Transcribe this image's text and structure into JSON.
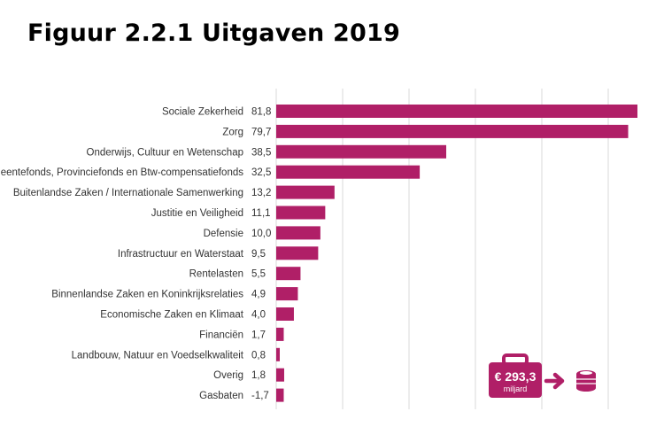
{
  "title": "Figuur 2.2.1 Uitgaven 2019",
  "colors": {
    "bar": "#b01f67",
    "grid": "#d9d9d9",
    "text": "#333333"
  },
  "total": {
    "amount": "€ 293,3",
    "unit": "miljard",
    "icons": [
      "briefcase-icon",
      "arrow-right-icon",
      "coin-stack-icon"
    ]
  },
  "chart_data": {
    "type": "bar",
    "orientation": "horizontal",
    "title": "Figuur 2.2.1 Uitgaven 2019",
    "xlim": [
      0,
      81.8
    ],
    "categories": [
      "Sociale Zekerheid",
      "Zorg",
      "Onderwijs, Cultuur en Wetenschap",
      "Gemeentefonds, Provinciefonds en Btw-compensatiefonds",
      "Buitenlandse Zaken / Internationale Samenwerking",
      "Justitie en Veiligheid",
      "Defensie",
      "Infrastructuur en Waterstaat",
      "Rentelasten",
      "Binnenlandse Zaken en Koninkrijksrelaties",
      "Economische Zaken en Klimaat",
      "Financiën",
      "Landbouw, Natuur en Voedselkwaliteit",
      "Overig",
      "Gasbaten"
    ],
    "values": [
      81.8,
      79.7,
      38.5,
      32.5,
      13.2,
      11.1,
      10.0,
      9.5,
      5.5,
      4.9,
      4.0,
      1.7,
      0.8,
      1.8,
      -1.7
    ],
    "value_labels": [
      "81,8",
      "79,7",
      "38,5",
      "32,5",
      "13,2",
      "11,1",
      "10,0",
      "9,5",
      "5,5",
      "4,9",
      "4,0",
      "1,7",
      "0,8",
      "1,8",
      "-1,7"
    ],
    "xlabel": "",
    "ylabel": "",
    "grid": true
  }
}
